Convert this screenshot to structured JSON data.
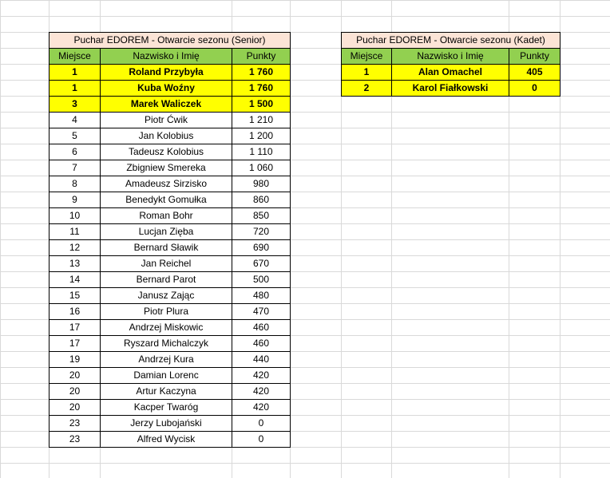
{
  "senior": {
    "title": "Puchar EDOREM - Otwarcie sezonu (Senior)",
    "headers": [
      "Miejsce",
      "Nazwisko i Imię",
      "Punkty"
    ],
    "rows": [
      [
        "1",
        "Roland Przybyła",
        "1 760"
      ],
      [
        "1",
        "Kuba Woźny",
        "1 760"
      ],
      [
        "3",
        "Marek Waliczek",
        "1 500"
      ],
      [
        "4",
        "Piotr Ćwik",
        "1 210"
      ],
      [
        "5",
        "Jan Kolobius",
        "1 200"
      ],
      [
        "6",
        "Tadeusz Kolobius",
        "1 110"
      ],
      [
        "7",
        "Zbigniew Smereka",
        "1 060"
      ],
      [
        "8",
        "Amadeusz Sirzisko",
        "980"
      ],
      [
        "9",
        "Benedykt Gomułka",
        "860"
      ],
      [
        "10",
        "Roman Bohr",
        "850"
      ],
      [
        "11",
        "Lucjan Zięba",
        "720"
      ],
      [
        "12",
        "Bernard Sławik",
        "690"
      ],
      [
        "13",
        "Jan Reichel",
        "670"
      ],
      [
        "14",
        "Bernard Parot",
        "500"
      ],
      [
        "15",
        "Janusz Zając",
        "480"
      ],
      [
        "16",
        "Piotr Plura",
        "470"
      ],
      [
        "17",
        "Andrzej Miskowic",
        "460"
      ],
      [
        "17",
        "Ryszard Michalczyk",
        "460"
      ],
      [
        "19",
        "Andrzej Kura",
        "440"
      ],
      [
        "20",
        "Damian Lorenc",
        "420"
      ],
      [
        "20",
        "Artur Kaczyna",
        "420"
      ],
      [
        "20",
        "Kacper Twaróg",
        "420"
      ],
      [
        "23",
        "Jerzy Lubojański",
        "0"
      ],
      [
        "23",
        "Alfred Wycisk",
        "0"
      ]
    ],
    "highlighted_rows": 3
  },
  "kadet": {
    "title": "Puchar EDOREM - Otwarcie sezonu (Kadet)",
    "headers": [
      "Miejsce",
      "Nazwisko i Imię",
      "Punkty"
    ],
    "rows": [
      [
        "1",
        "Alan Omachel",
        "405"
      ],
      [
        "2",
        "Karol Fiałkowski",
        "0"
      ]
    ],
    "highlighted_rows": 2
  },
  "colors": {
    "title_fill": "#fce4d6",
    "header_fill": "#92d050",
    "highlight_fill": "#ffff00",
    "gridline": "#d9d9d9"
  }
}
